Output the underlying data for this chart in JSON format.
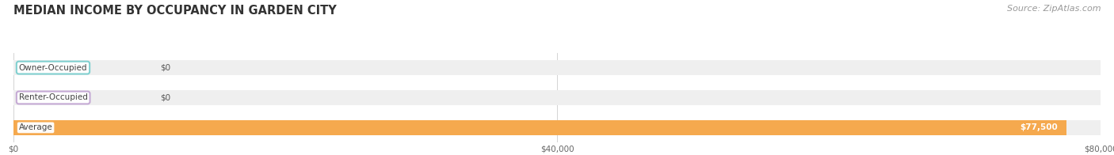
{
  "title": "MEDIAN INCOME BY OCCUPANCY IN GARDEN CITY",
  "source": "Source: ZipAtlas.com",
  "categories": [
    "Owner-Occupied",
    "Renter-Occupied",
    "Average"
  ],
  "values": [
    0,
    0,
    77500
  ],
  "bar_colors": [
    "#7dcfcf",
    "#c4a8d4",
    "#f5a94e"
  ],
  "bar_bg_color": "#efefef",
  "xlim": [
    0,
    80000
  ],
  "xtick_positions": [
    0,
    40000,
    80000
  ],
  "xtick_labels": [
    "$0",
    "$40,000",
    "$80,000"
  ],
  "background_color": "#ffffff",
  "title_fontsize": 10.5,
  "source_fontsize": 8,
  "bar_height": 0.52,
  "figsize": [
    14.06,
    1.96
  ],
  "dpi": 100
}
